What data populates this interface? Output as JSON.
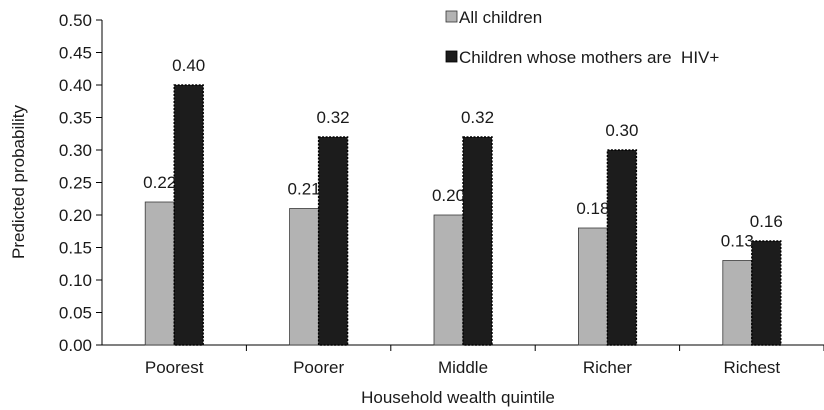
{
  "chart_data": {
    "type": "bar",
    "title": "",
    "xlabel": "Household wealth quintile",
    "ylabel": "Predicted probability",
    "ylim": [
      0,
      0.5
    ],
    "yticks": [
      "0.00",
      "0.05",
      "0.10",
      "0.15",
      "0.20",
      "0.25",
      "0.30",
      "0.35",
      "0.40",
      "0.45",
      "0.50"
    ],
    "categories": [
      "Poorest",
      "Poorer",
      "Middle",
      "Richer",
      "Richest"
    ],
    "series": [
      {
        "name": "All children",
        "color": "#b3b3b3",
        "values": [
          0.22,
          0.21,
          0.2,
          0.18,
          0.13
        ],
        "labels": [
          "0.22",
          "0.21",
          "0.20",
          "0.18",
          "0.13"
        ]
      },
      {
        "name": "Children whose mothers are  HIV+",
        "color": "#1c1c1c",
        "values": [
          0.4,
          0.32,
          0.32,
          0.3,
          0.16
        ],
        "labels": [
          "0.40",
          "0.32",
          "0.32",
          "0.30",
          "0.16"
        ]
      }
    ],
    "grid": false,
    "legend_position": "top-right"
  }
}
